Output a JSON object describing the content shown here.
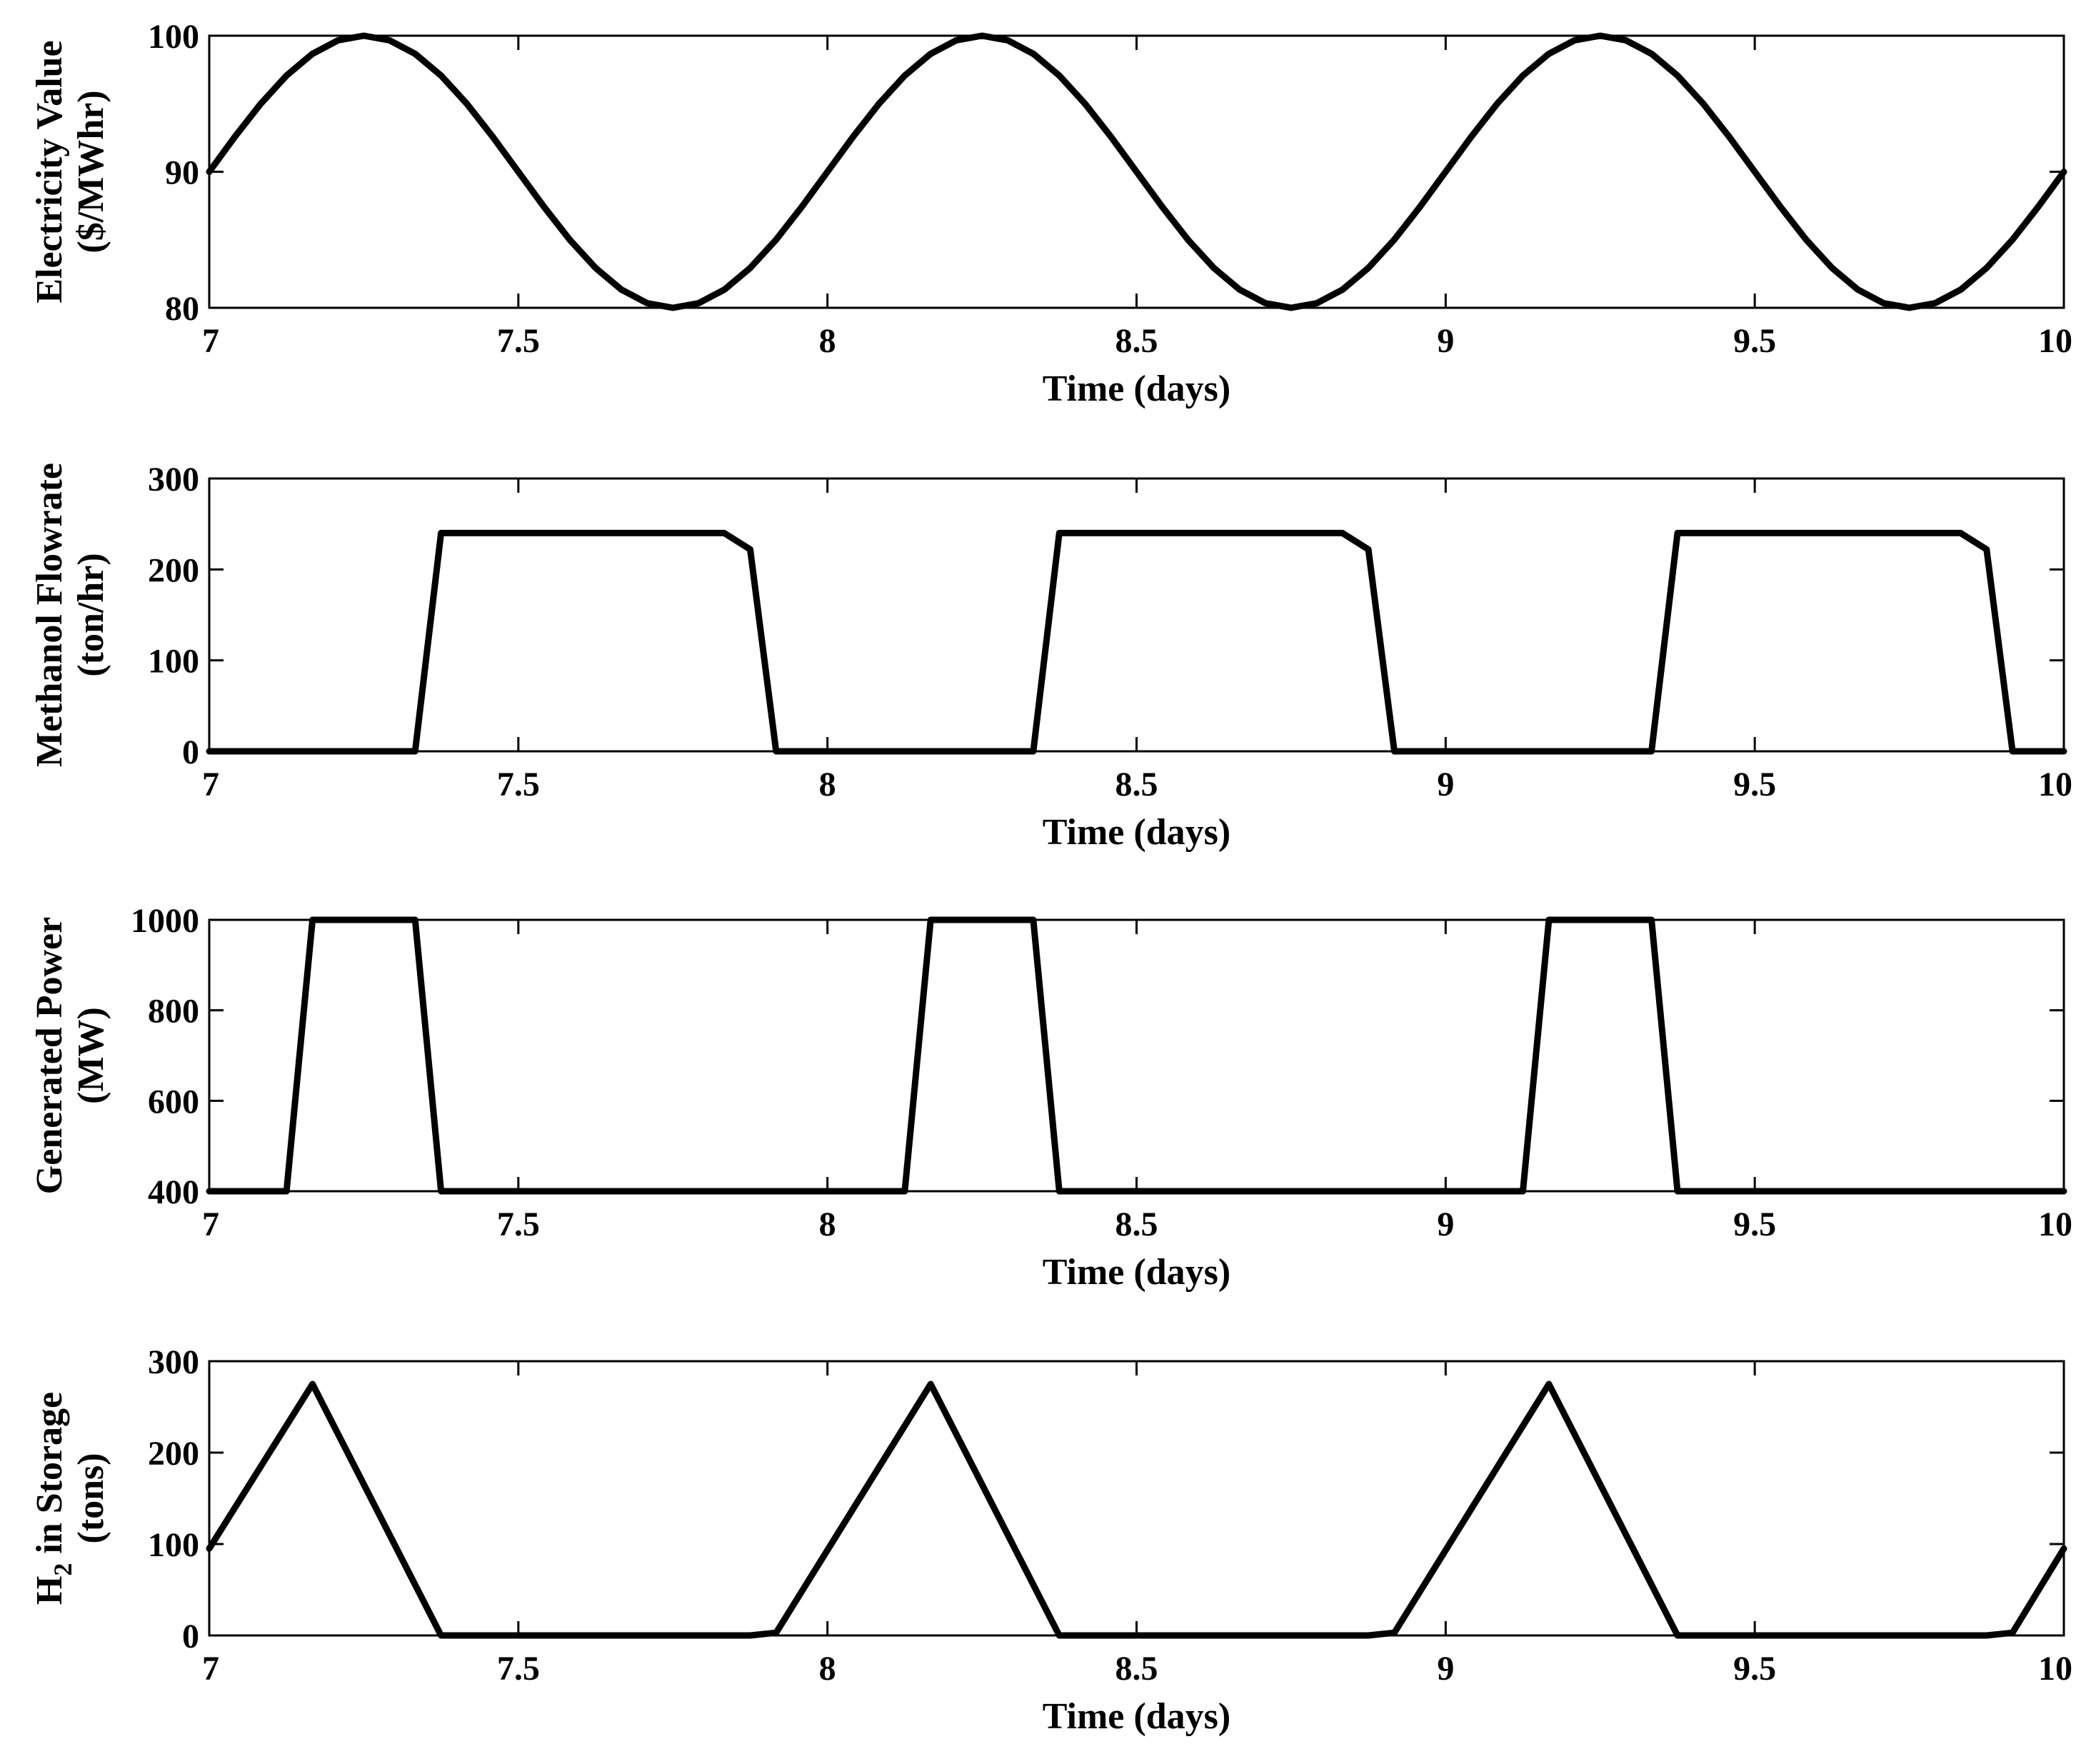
{
  "chart_data": [
    {
      "type": "line",
      "xlabel": "Time (days)",
      "ylabel": [
        "Electricity Value",
        "($/MWhr)"
      ],
      "xlim": [
        7,
        10
      ],
      "ylim": [
        80,
        100
      ],
      "xticks": [
        "7",
        "7.5",
        "8",
        "8.5",
        "9",
        "9.5",
        "10"
      ],
      "yticks": [
        "80",
        "90",
        "100"
      ],
      "grid": false,
      "series": [
        {
          "x": [
            7,
            7.0417,
            7.0833,
            7.125,
            7.1667,
            7.2083,
            7.25,
            7.2917,
            7.3333,
            7.375,
            7.4167,
            7.4583,
            7.5,
            7.5417,
            7.5833,
            7.625,
            7.6667,
            7.7083,
            7.75,
            7.7917,
            7.8333,
            7.875,
            7.9167,
            7.9583,
            8,
            8.0417,
            8.0833,
            8.125,
            8.1667,
            8.2083,
            8.25,
            8.2917,
            8.3333,
            8.375,
            8.4167,
            8.4583,
            8.5,
            8.5417,
            8.5833,
            8.625,
            8.6667,
            8.7083,
            8.75,
            8.7917,
            8.8333,
            8.875,
            8.9167,
            8.9583,
            9,
            9.0417,
            9.0833,
            9.125,
            9.1667,
            9.2083,
            9.25,
            9.2917,
            9.3333,
            9.375,
            9.4167,
            9.4583,
            9.5,
            9.5417,
            9.5833,
            9.625,
            9.6667,
            9.7083,
            9.75,
            9.7917,
            9.8333,
            9.875,
            9.9167,
            9.9583,
            10
          ],
          "y": [
            90,
            92.59,
            95,
            97.07,
            98.66,
            99.66,
            100,
            99.66,
            98.66,
            97.07,
            95,
            92.59,
            90,
            87.41,
            85,
            82.93,
            81.34,
            80.34,
            80,
            80.34,
            81.34,
            82.93,
            85,
            87.41,
            90,
            92.59,
            95,
            97.07,
            98.66,
            99.66,
            100,
            99.66,
            98.66,
            97.07,
            95,
            92.59,
            90,
            87.41,
            85,
            82.93,
            81.34,
            80.34,
            80,
            80.34,
            81.34,
            82.93,
            85,
            87.41,
            90,
            92.59,
            95,
            97.07,
            98.66,
            99.66,
            100,
            99.66,
            98.66,
            97.07,
            95,
            92.59,
            90,
            87.41,
            85,
            82.93,
            81.34,
            80.34,
            80,
            80.34,
            81.34,
            82.93,
            85,
            87.41,
            90
          ]
        }
      ]
    },
    {
      "type": "line",
      "xlabel": "Time (days)",
      "ylabel": [
        "Methanol Flowrate",
        "(ton/hr)"
      ],
      "xlim": [
        7,
        10
      ],
      "ylim": [
        0,
        300
      ],
      "xticks": [
        "7",
        "7.5",
        "8",
        "8.5",
        "9",
        "9.5",
        "10"
      ],
      "yticks": [
        "0",
        "100",
        "200",
        "300"
      ],
      "grid": false,
      "series": [
        {
          "x": [
            7,
            7.333,
            7.375,
            7.833,
            7.875,
            7.917,
            8.333,
            8.375,
            8.833,
            8.875,
            8.917,
            9.333,
            9.375,
            9.833,
            9.875,
            9.917,
            10
          ],
          "y": [
            0,
            0,
            240,
            240,
            222,
            0,
            0,
            240,
            240,
            222,
            0,
            0,
            240,
            240,
            222,
            0,
            0
          ]
        }
      ]
    },
    {
      "type": "line",
      "xlabel": "Time (days)",
      "ylabel": [
        "Generated Power",
        "(MW)"
      ],
      "xlim": [
        7,
        10
      ],
      "ylim": [
        400,
        1000
      ],
      "xticks": [
        "7",
        "7.5",
        "8",
        "8.5",
        "9",
        "9.5",
        "10"
      ],
      "yticks": [
        "400",
        "600",
        "800",
        "1000"
      ],
      "grid": false,
      "series": [
        {
          "x": [
            7,
            7.125,
            7.167,
            7.333,
            7.375,
            8.125,
            8.167,
            8.333,
            8.375,
            9.125,
            9.167,
            9.333,
            9.375,
            10
          ],
          "y": [
            400,
            400,
            1000,
            1000,
            400,
            400,
            1000,
            1000,
            400,
            400,
            1000,
            1000,
            400,
            400
          ]
        }
      ]
    },
    {
      "type": "line",
      "xlabel": "Time (days)",
      "ylabel_prefix": "H",
      "ylabel_sub": "2",
      "ylabel_suffix": " in Storage",
      "ylabel_line2": "(tons)",
      "xlim": [
        7,
        10
      ],
      "ylim": [
        0,
        300
      ],
      "xticks": [
        "7",
        "7.5",
        "8",
        "8.5",
        "9",
        "9.5",
        "10"
      ],
      "yticks": [
        "0",
        "100",
        "200",
        "300"
      ],
      "grid": false,
      "series": [
        {
          "x": [
            7,
            7.167,
            7.375,
            7.875,
            7.917,
            8.167,
            8.375,
            8.875,
            8.917,
            9.167,
            9.375,
            9.875,
            9.917,
            10
          ],
          "y": [
            95,
            275,
            0,
            0,
            3,
            275,
            0,
            0,
            3,
            275,
            0,
            0,
            3,
            95
          ]
        }
      ]
    }
  ]
}
